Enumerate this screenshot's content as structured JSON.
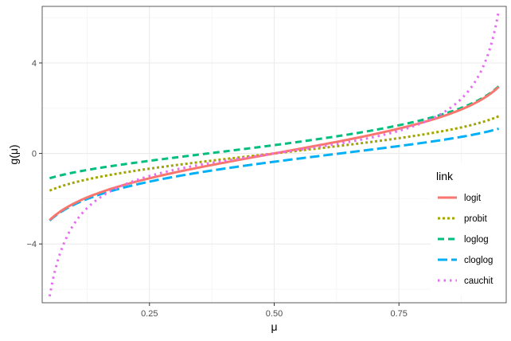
{
  "chart_data": {
    "type": "line",
    "xlabel": "μ",
    "ylabel": "g(μ)",
    "xlim": [
      0.035,
      0.965
    ],
    "ylim": [
      -6.6,
      6.5
    ],
    "x_ticks": [
      0.25,
      0.5,
      0.75
    ],
    "x_tick_labels": [
      "0.25",
      "0.50",
      "0.75"
    ],
    "y_ticks": [
      -4,
      0,
      4
    ],
    "y_tick_labels": [
      "−4",
      "0",
      "4"
    ],
    "grid": true,
    "legend": {
      "title": "link",
      "position": "right"
    },
    "x": [
      0.05,
      0.1,
      0.15,
      0.2,
      0.25,
      0.3,
      0.35,
      0.4,
      0.45,
      0.5,
      0.55,
      0.6,
      0.65,
      0.7,
      0.75,
      0.8,
      0.85,
      0.9,
      0.95
    ],
    "series": [
      {
        "name": "logit",
        "color": "#F8766D",
        "dash": "solid",
        "values": [
          -2.944,
          -2.197,
          -1.735,
          -1.386,
          -1.099,
          -0.847,
          -0.619,
          -0.405,
          -0.201,
          0.0,
          0.201,
          0.405,
          0.619,
          0.847,
          1.099,
          1.386,
          1.735,
          2.197,
          2.944
        ]
      },
      {
        "name": "probit",
        "color": "#A3A500",
        "dash": "dotted",
        "values": [
          -1.645,
          -1.282,
          -1.036,
          -0.842,
          -0.674,
          -0.524,
          -0.385,
          -0.253,
          -0.126,
          0.0,
          0.126,
          0.253,
          0.385,
          0.524,
          0.674,
          0.842,
          1.036,
          1.282,
          1.645
        ]
      },
      {
        "name": "loglog",
        "color": "#00BF7D",
        "dash": "dashed",
        "values": [
          -1.097,
          -0.834,
          -0.64,
          -0.476,
          -0.327,
          -0.186,
          -0.049,
          0.087,
          0.225,
          0.367,
          0.514,
          0.672,
          0.842,
          1.031,
          1.246,
          1.5,
          1.817,
          2.25,
          2.97
        ]
      },
      {
        "name": "cloglog",
        "color": "#00B0F6",
        "dash": "longdash",
        "values": [
          -2.97,
          -2.25,
          -1.817,
          -1.5,
          -1.246,
          -1.031,
          -0.842,
          -0.672,
          -0.514,
          -0.367,
          -0.225,
          -0.087,
          0.049,
          0.186,
          0.327,
          0.476,
          0.64,
          0.834,
          1.097
        ]
      },
      {
        "name": "cauchit",
        "color": "#E76BF3",
        "dash": "dotted",
        "values": [
          -6.314,
          -3.078,
          -1.963,
          -1.376,
          -1.0,
          -0.727,
          -0.51,
          -0.325,
          -0.158,
          0.0,
          0.158,
          0.325,
          0.51,
          0.727,
          1.0,
          1.376,
          1.963,
          3.078,
          6.314
        ]
      }
    ]
  }
}
